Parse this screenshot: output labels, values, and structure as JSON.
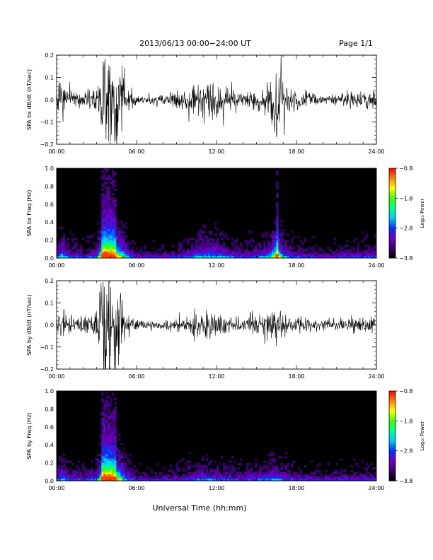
{
  "header": {
    "title": "2013/06/13  00:00−24:00 UT",
    "page": "Page 1/1"
  },
  "footer": {
    "xlabel": "Universal Time (hh:mm)"
  },
  "time_ticks": [
    "00:00",
    "06:00",
    "12:00",
    "18:00",
    "24:00"
  ],
  "colors": {
    "background": "#ffffff",
    "trace": "#000000",
    "colormap": [
      "#000000",
      "#3a0073",
      "#7000c8",
      "#0033ff",
      "#00c8ff",
      "#00ff90",
      "#40ff00",
      "#ffff00",
      "#ff8000",
      "#ff0000"
    ]
  },
  "chart_data": [
    {
      "type": "line",
      "ylabel": "SPA bx dB/dt (nT/sec)",
      "x_range_hours": [
        0,
        24
      ],
      "ylim": [
        -0.2,
        0.2
      ],
      "yticks": [
        "0.2",
        "0.1",
        "0.0",
        "−0.1",
        "−0.2"
      ],
      "ytick_values": [
        0.2,
        0.1,
        0.0,
        -0.1,
        -0.2
      ],
      "activity": {
        "hour": [
          0.0,
          0.4,
          1.0,
          2.0,
          3.0,
          3.5,
          3.8,
          4.2,
          4.8,
          5.2,
          6.0,
          8.0,
          9.5,
          10.5,
          11.0,
          11.5,
          12.0,
          13.0,
          14.0,
          15.0,
          16.0,
          16.5,
          17.0,
          17.5,
          18.0,
          20.0,
          22.0,
          24.0
        ],
        "amplitude": [
          0.03,
          0.1,
          0.04,
          0.03,
          0.05,
          0.22,
          0.22,
          0.2,
          0.16,
          0.08,
          0.02,
          0.02,
          0.04,
          0.07,
          0.09,
          0.08,
          0.07,
          0.05,
          0.03,
          0.05,
          0.08,
          0.2,
          0.09,
          0.05,
          0.04,
          0.02,
          0.03,
          0.04
        ]
      }
    },
    {
      "type": "heatmap",
      "ylabel": "SPA bx Freq (Hz)",
      "x_range_hours": [
        0,
        24
      ],
      "ylim": [
        0.0,
        1.0
      ],
      "yticks": [
        "1.0",
        "0.8",
        "0.6",
        "0.4",
        "0.2",
        "0.0"
      ],
      "ytick_values": [
        1.0,
        0.8,
        0.6,
        0.4,
        0.2,
        0.0
      ],
      "colorbar": {
        "label": "Log₁₀ Power",
        "range": [
          -3.8,
          -0.8
        ],
        "ticks": [
          "−0.8",
          "−1.8",
          "−2.8",
          "−3.8"
        ],
        "tick_values": [
          -0.8,
          -1.8,
          -2.8,
          -3.8
        ]
      }
    },
    {
      "type": "line",
      "ylabel": "SPA by dB/dt (nT/sec)",
      "x_range_hours": [
        0,
        24
      ],
      "ylim": [
        -0.2,
        0.2
      ],
      "yticks": [
        "0.2",
        "0.1",
        "0.0",
        "−0.1",
        "−0.2"
      ],
      "ytick_values": [
        0.2,
        0.1,
        0.0,
        -0.1,
        -0.2
      ],
      "activity": {
        "hour": [
          0.0,
          0.4,
          1.0,
          2.0,
          3.0,
          3.5,
          3.8,
          4.2,
          4.8,
          5.2,
          6.0,
          8.0,
          9.5,
          10.5,
          11.0,
          11.5,
          12.0,
          13.0,
          14.0,
          15.0,
          16.0,
          16.5,
          17.0,
          17.5,
          18.0,
          20.0,
          22.0,
          24.0
        ],
        "amplitude": [
          0.03,
          0.08,
          0.04,
          0.03,
          0.05,
          0.22,
          0.22,
          0.2,
          0.15,
          0.07,
          0.02,
          0.02,
          0.03,
          0.05,
          0.06,
          0.06,
          0.05,
          0.04,
          0.03,
          0.05,
          0.06,
          0.08,
          0.05,
          0.04,
          0.03,
          0.02,
          0.03,
          0.03
        ]
      }
    },
    {
      "type": "heatmap",
      "ylabel": "SPA by Freq (Hz)",
      "x_range_hours": [
        0,
        24
      ],
      "ylim": [
        0.0,
        1.0
      ],
      "yticks": [
        "1.0",
        "0.8",
        "0.6",
        "0.4",
        "0.2",
        "0.0"
      ],
      "ytick_values": [
        1.0,
        0.8,
        0.6,
        0.4,
        0.2,
        0.0
      ],
      "colorbar": {
        "label": "Log₁₀ Power",
        "range": [
          -3.8,
          -0.8
        ],
        "ticks": [
          "−0.8",
          "−1.8",
          "−2.8",
          "−3.8"
        ],
        "tick_values": [
          -0.8,
          -1.8,
          -2.8,
          -3.8
        ]
      }
    }
  ]
}
